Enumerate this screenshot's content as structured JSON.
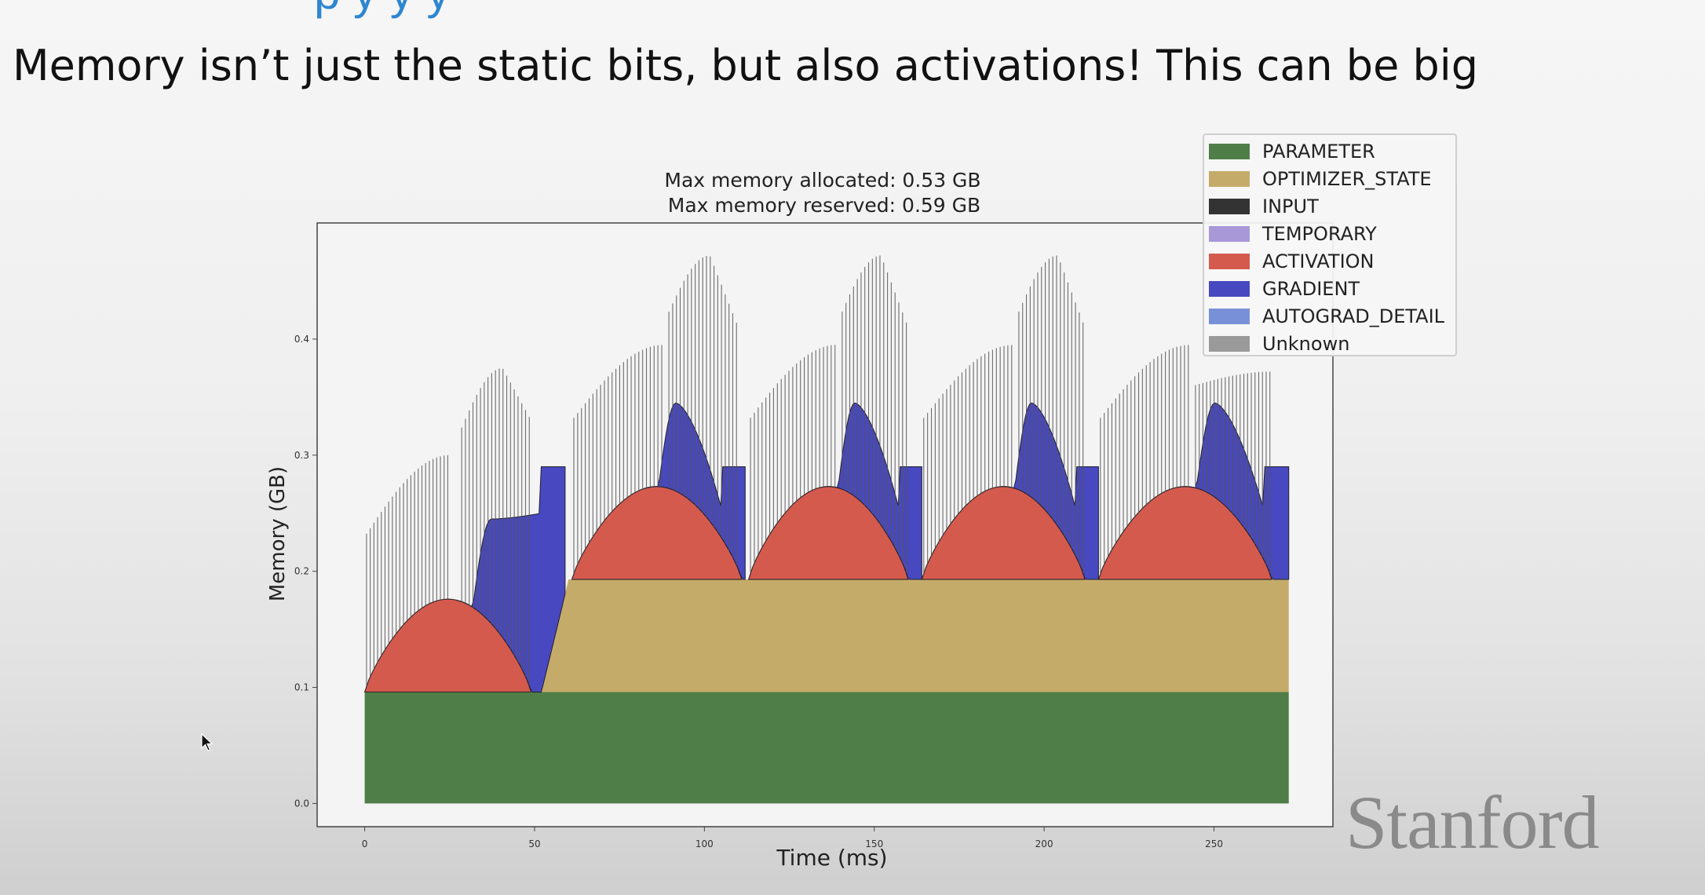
{
  "slide": {
    "top_fragment": "p      y              y    y",
    "headline": "Memory isn’t just the static bits, but also activations! This can be big",
    "logo_text": "Stanford"
  },
  "chart_data": {
    "type": "area",
    "title": "Max memory allocated: 0.53 GB\nMax memory reserved: 0.59 GB",
    "title_lines": [
      "Max memory allocated: 0.53 GB",
      "Max memory reserved: 0.59 GB"
    ],
    "xlabel": "Time (ms)",
    "ylabel": "Memory (GB)",
    "xlim": [
      -14,
      285
    ],
    "ylim": [
      -0.02,
      0.5
    ],
    "xticks": [
      0,
      50,
      100,
      150,
      200,
      250
    ],
    "yticks": [
      0.0,
      0.1,
      0.2,
      0.3,
      0.4
    ],
    "ytick_labels": [
      "0.0",
      "0.1",
      "0.2",
      "0.3",
      "0.4"
    ],
    "stacked": true,
    "legend_position": "top-right",
    "colors": {
      "PARAMETER": "#4f7e48",
      "OPTIMIZER_STATE": "#c4ab69",
      "INPUT": "#333333",
      "TEMPORARY": "#a898d8",
      "ACTIVATION": "#d55a4e",
      "GRADIENT": "#4848c0",
      "AUTOGRAD_DETAIL": "#7890d8",
      "Unknown": "#9a9a9a"
    },
    "legend": [
      "PARAMETER",
      "OPTIMIZER_STATE",
      "INPUT",
      "TEMPORARY",
      "ACTIVATION",
      "GRADIENT",
      "AUTOGRAD_DETAIL",
      "Unknown"
    ],
    "series": [
      {
        "name": "PARAMETER",
        "x": [
          0,
          272
        ],
        "values": [
          0.096,
          0.096
        ]
      },
      {
        "name": "OPTIMIZER_STATE",
        "x": [
          0,
          52,
          57,
          60,
          272
        ],
        "values": [
          0,
          0,
          0.06,
          0.097,
          0.097
        ]
      },
      {
        "name": "ACTIVATION",
        "peaks": [
          {
            "start": 0,
            "end": 49,
            "peak": 0.08
          },
          {
            "start": 61,
            "end": 111,
            "peak": 0.08
          },
          {
            "start": 113,
            "end": 160,
            "peak": 0.08
          },
          {
            "start": 164,
            "end": 212,
            "peak": 0.08
          },
          {
            "start": 216,
            "end": 267,
            "peak": 0.08
          }
        ]
      },
      {
        "name": "GRADIENT",
        "segments": [
          {
            "start": 27,
            "end": 59,
            "peak": 0.245,
            "end_value": 0.29
          },
          {
            "start": 82,
            "end": 112,
            "peak": 0.345,
            "end_value": 0.29
          },
          {
            "start": 135,
            "end": 164,
            "peak": 0.345,
            "end_value": 0.29
          },
          {
            "start": 187,
            "end": 216,
            "peak": 0.345,
            "end_value": 0.29
          },
          {
            "start": 240,
            "end": 272,
            "peak": 0.345,
            "end_value": 0.29
          }
        ]
      },
      {
        "name": "Unknown",
        "spike_bursts": [
          {
            "start": 0,
            "end": 25,
            "from": 0.23,
            "to": 0.3
          },
          {
            "start": 28,
            "end": 49,
            "from": 0.32,
            "to": 0.375,
            "fall_to": 0.33
          },
          {
            "start": 61,
            "end": 88,
            "from": 0.33,
            "to": 0.395
          },
          {
            "start": 89,
            "end": 110,
            "from": 0.42,
            "to": 0.472,
            "fall_to": 0.41
          },
          {
            "start": 113,
            "end": 139,
            "from": 0.33,
            "to": 0.395
          },
          {
            "start": 140,
            "end": 160,
            "from": 0.42,
            "to": 0.472,
            "fall_to": 0.41
          },
          {
            "start": 164,
            "end": 191,
            "from": 0.33,
            "to": 0.395
          },
          {
            "start": 192,
            "end": 212,
            "from": 0.42,
            "to": 0.472,
            "fall_to": 0.41
          },
          {
            "start": 216,
            "end": 243,
            "from": 0.33,
            "to": 0.395
          },
          {
            "start": 244,
            "end": 267,
            "from": 0.36,
            "to": 0.372
          }
        ]
      }
    ]
  }
}
